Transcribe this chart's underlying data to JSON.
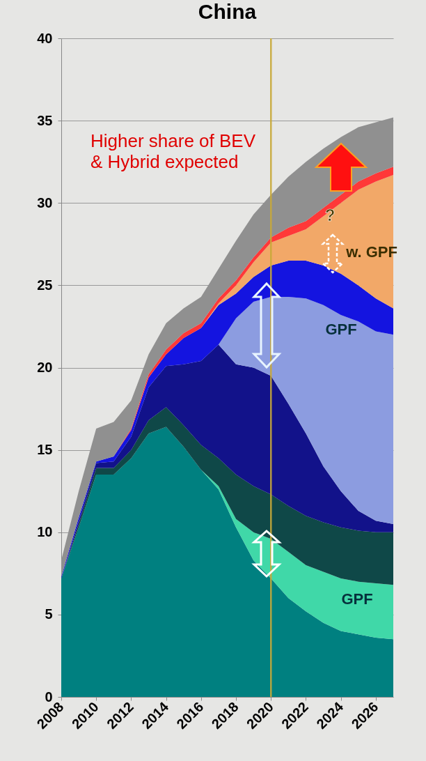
{
  "chart_data": {
    "type": "area",
    "stacked": true,
    "title": "China",
    "x": [
      2008,
      2009,
      2010,
      2011,
      2012,
      2013,
      2014,
      2015,
      2016,
      2017,
      2018,
      2019,
      2020,
      2021,
      2022,
      2023,
      2024,
      2025,
      2026,
      2027
    ],
    "series": [
      {
        "color": "#008080",
        "values": [
          7.2,
          10.3,
          13.5,
          13.5,
          14.5,
          16.0,
          16.4,
          15.2,
          13.8,
          12.6,
          10.3,
          8.3,
          7.2,
          6.0,
          5.2,
          4.5,
          4.0,
          3.8,
          3.6,
          3.5
        ]
      },
      {
        "color": "#40d8a8",
        "values": [
          0,
          0,
          0,
          0,
          0,
          0,
          0,
          0,
          0,
          0.2,
          0.5,
          1.7,
          2.4,
          2.8,
          2.8,
          3.1,
          3.2,
          3.2,
          3.3,
          3.3
        ]
      },
      {
        "color": "#0f4848",
        "values": [
          0,
          0.2,
          0.4,
          0.4,
          0.5,
          0.8,
          1.2,
          1.3,
          1.5,
          1.7,
          2.7,
          2.8,
          2.7,
          2.8,
          3.0,
          3.0,
          3.1,
          3.1,
          3.1,
          3.2
        ]
      },
      {
        "color": "#12128a",
        "values": [
          0,
          0.2,
          0.3,
          0.4,
          0.8,
          2.0,
          2.5,
          3.7,
          5.1,
          6.9,
          6.7,
          7.2,
          7.2,
          6.2,
          5.0,
          3.4,
          2.2,
          1.2,
          0.7,
          0.5
        ]
      },
      {
        "color": "#8c9ce0",
        "values": [
          0,
          0,
          0,
          0,
          0,
          0,
          0,
          0,
          0,
          0,
          2.8,
          4.0,
          4.8,
          6.5,
          8.2,
          9.8,
          10.7,
          11.5,
          11.5,
          11.5
        ]
      },
      {
        "color": "#1414e0",
        "values": [
          0.1,
          0.2,
          0.1,
          0.3,
          0.4,
          0.6,
          0.7,
          1.6,
          2.0,
          2.4,
          1.5,
          1.5,
          1.9,
          2.2,
          2.3,
          2.4,
          2.5,
          2.2,
          2.0,
          1.6
        ]
      },
      {
        "color": "#f2a868",
        "values": [
          0,
          0,
          0,
          0,
          0,
          0,
          0,
          0,
          0,
          0.1,
          0.5,
          0.9,
          1.4,
          1.5,
          1.9,
          3.0,
          4.3,
          5.8,
          7.1,
          8.1
        ]
      },
      {
        "color": "#ff3838",
        "values": [
          0,
          0,
          0,
          0,
          0.1,
          0.2,
          0.3,
          0.3,
          0.3,
          0.3,
          0.3,
          0.3,
          0.3,
          0.5,
          0.5,
          0.5,
          0.5,
          0.5,
          0.5,
          0.5
        ]
      },
      {
        "color": "#909090",
        "values": [
          1.0,
          1.6,
          2.0,
          2.1,
          1.7,
          1.2,
          1.6,
          1.5,
          1.6,
          1.8,
          2.4,
          2.6,
          2.6,
          3.1,
          3.6,
          3.6,
          3.5,
          3.3,
          3.1,
          3.0
        ]
      }
    ],
    "xlim": [
      2008,
      2027
    ],
    "xticks": [
      2008,
      2010,
      2012,
      2014,
      2016,
      2018,
      2020,
      2022,
      2024,
      2026
    ],
    "ylim": [
      0,
      40
    ],
    "yticks": [
      0,
      5,
      10,
      15,
      20,
      25,
      30,
      35,
      40
    ],
    "grid": "y",
    "ref_lines": [
      {
        "axis": "x",
        "value": 2020,
        "color": "#c8a838"
      }
    ],
    "annotations": [
      "Higher share of BEV & Hybrid expected",
      "?",
      "w. GPF",
      "GPF",
      "GPF"
    ]
  }
}
